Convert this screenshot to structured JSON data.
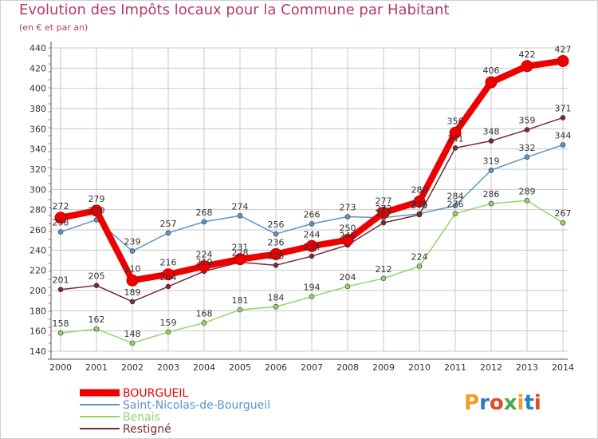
{
  "title": "Evolution des Impôts locaux pour la Commune par Habitant",
  "subtitle": "(en € et par an)",
  "logo_text": "Proxiti",
  "colors": {
    "title": "#b53a6e",
    "grid": "#c8c8c8",
    "axis": "#555555",
    "bourgueil": "#ee0000",
    "saint_nicolas": "#5c95c8",
    "benais": "#93d46a",
    "restigne": "#7a2a32"
  },
  "chart_data": {
    "type": "line",
    "title": "Evolution des Impôts locaux pour la Commune par Habitant",
    "subtitle": "(en € et par an)",
    "x": [
      "2000",
      "2001",
      "2002",
      "2003",
      "2004",
      "2005",
      "2006",
      "2007",
      "2008",
      "2009",
      "2010",
      "2011",
      "2012",
      "2013",
      "2014"
    ],
    "ylim": [
      140,
      440
    ],
    "yticks": [
      140,
      160,
      180,
      200,
      220,
      240,
      260,
      280,
      300,
      320,
      340,
      360,
      380,
      400,
      420,
      440
    ],
    "grid": true,
    "legend_position": "bottom-left",
    "series": [
      {
        "name": "BOURGUEIL",
        "color": "#ee0000",
        "values": [
          272,
          279,
          210,
          216,
          224,
          231,
          236,
          244,
          250,
          277,
          288,
          356,
          406,
          422,
          427
        ]
      },
      {
        "name": "Saint-Nicolas-de-Bourgueil",
        "color": "#5c95c8",
        "values": [
          258,
          270,
          239,
          257,
          268,
          274,
          256,
          266,
          273,
          272,
          276,
          284,
          319,
          332,
          344
        ]
      },
      {
        "name": "Benais",
        "color": "#93d46a",
        "values": [
          158,
          162,
          148,
          159,
          168,
          181,
          184,
          194,
          204,
          212,
          224,
          276,
          286,
          289,
          267
        ]
      },
      {
        "name": "Restigné",
        "color": "#7a2a32",
        "values": [
          201,
          205,
          189,
          204,
          219,
          228,
          225,
          234,
          245,
          267,
          275,
          341,
          348,
          359,
          371
        ]
      }
    ]
  }
}
